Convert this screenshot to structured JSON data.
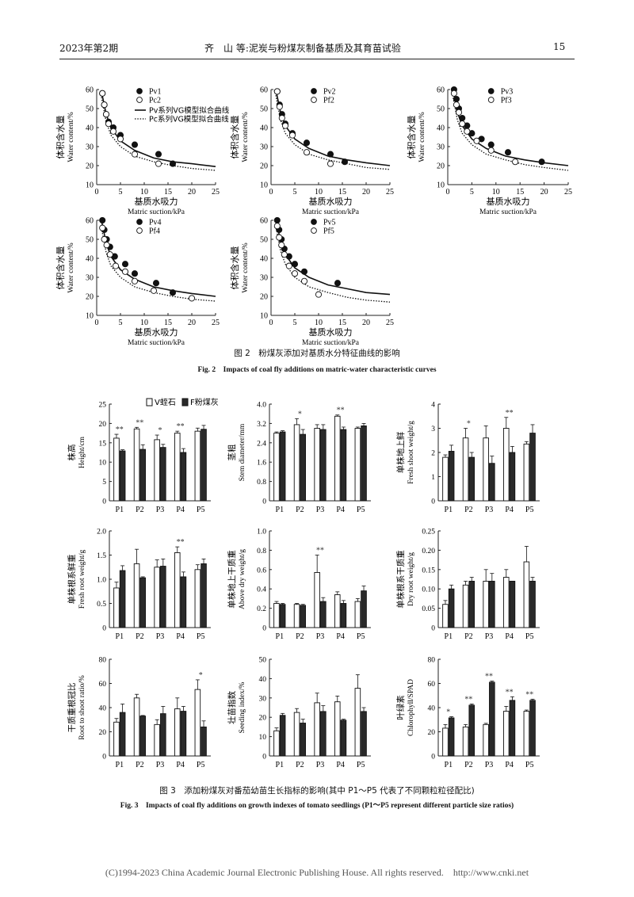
{
  "header": {
    "left": "2023年第2期",
    "center": "齐　山 等:泥炭与粉煤灰制备基质及其育苗试验",
    "page_number": "15"
  },
  "fig2": {
    "caption_cn": "图 2　粉煤灰添加对基质水分特征曲线的影响",
    "caption_en": "Fig. 2　Impacts of coal fly additions on matric-water characteristic curves",
    "x_label_cn": "基质水吸力",
    "x_label_en": "Matric suction/kPa",
    "y_label_cn": "体积含水量",
    "y_label_en": "Water content/%",
    "fit_line_labels": [
      "Pv系列VG模型拟合曲线",
      "Pc系列VG模型拟合曲线"
    ],
    "x_ticks": [
      "0",
      "5",
      "10",
      "15",
      "20",
      "25"
    ],
    "y_ticks": [
      "10",
      "20",
      "30",
      "40",
      "50",
      "60"
    ]
  },
  "fig3": {
    "caption_cn": "图 3　添加粉煤灰对番茄幼苗生长指标的影响(其中 P1～P5 代表了不同颗粒粒径配比)",
    "caption_en": "Fig. 3　Impacts of coal fly additions on growth indexes of tomato seedlings (P1～P5 represent different particle size ratios)",
    "legend": [
      "V蛭石",
      "F粉煤灰"
    ]
  },
  "footer": "(C)1994-2023 China Academic Journal Electronic Publishing House. All rights reserved.　http://www.cnki.net",
  "chart_data": [
    {
      "type": "scatter",
      "name": "fig2a",
      "legend": [
        "Pv1",
        "Pc2"
      ],
      "xlim": [
        0,
        25
      ],
      "ylim": [
        10,
        60
      ],
      "series": [
        {
          "name": "Pv1",
          "marker": "filled",
          "x": [
            1.2,
            1.6,
            2,
            2.5,
            3.5,
            5,
            8,
            13,
            16
          ],
          "y": [
            58,
            52,
            47,
            43,
            40,
            36,
            31,
            26,
            21
          ]
        },
        {
          "name": "Pc2",
          "marker": "open",
          "x": [
            1.2,
            1.6,
            2,
            2.5,
            3.5,
            5,
            8,
            13
          ],
          "y": [
            58,
            52,
            47,
            42,
            38,
            34,
            26,
            21
          ]
        }
      ],
      "fits": [
        {
          "style": "solid",
          "x": [
            1,
            2,
            3,
            5,
            8,
            12,
            16,
            20,
            25
          ],
          "y": [
            59,
            47,
            40,
            33,
            28,
            24,
            22,
            21,
            19.5
          ]
        },
        {
          "style": "dotted",
          "x": [
            1,
            2,
            3,
            5,
            8,
            12,
            16,
            20,
            25
          ],
          "y": [
            56,
            43,
            36,
            30,
            25,
            22,
            20,
            18.5,
            17.5
          ]
        }
      ]
    },
    {
      "type": "scatter",
      "name": "fig2b",
      "legend": [
        "Pv2",
        "Pf2"
      ],
      "xlim": [
        0,
        25
      ],
      "ylim": [
        10,
        60
      ],
      "series": [
        {
          "name": "Pv2",
          "marker": "filled",
          "x": [
            1.3,
            1.8,
            2.3,
            3,
            4.5,
            7.5,
            12.5,
            15.5
          ],
          "y": [
            59,
            52,
            47,
            42,
            37,
            32,
            26,
            22
          ]
        },
        {
          "name": "Pf2",
          "marker": "open",
          "x": [
            1.3,
            1.8,
            2.3,
            3,
            4.5,
            7.5,
            12.5
          ],
          "y": [
            59,
            51,
            45,
            41,
            36,
            27,
            21
          ]
        }
      ],
      "fits": [
        {
          "style": "solid",
          "x": [
            1,
            2,
            3,
            5,
            8,
            12,
            16,
            20,
            25
          ],
          "y": [
            60,
            48,
            41,
            34,
            29,
            25,
            23,
            21.5,
            20
          ]
        },
        {
          "style": "dotted",
          "x": [
            1,
            2,
            3,
            5,
            8,
            12,
            16,
            20,
            25
          ],
          "y": [
            57,
            44,
            37,
            31,
            26,
            23,
            21,
            19,
            18
          ]
        }
      ]
    },
    {
      "type": "scatter",
      "name": "fig2c",
      "legend": [
        "Pv3",
        "Pf3"
      ],
      "xlim": [
        0,
        25
      ],
      "ylim": [
        10,
        60
      ],
      "series": [
        {
          "name": "Pv3",
          "marker": "filled",
          "x": [
            1.3,
            1.8,
            2.3,
            3,
            4,
            5,
            7,
            9,
            12.5,
            19.5
          ],
          "y": [
            60,
            55,
            50,
            45,
            41,
            37,
            34,
            31,
            27,
            22
          ]
        },
        {
          "name": "Pf3",
          "marker": "open",
          "x": [
            1.3,
            1.8,
            2.3,
            3,
            4,
            6,
            9,
            14
          ],
          "y": [
            58,
            52,
            48,
            42,
            38,
            33,
            28,
            22
          ]
        }
      ],
      "fits": [
        {
          "style": "solid",
          "x": [
            1,
            2,
            3,
            5,
            8,
            12,
            16,
            20,
            25
          ],
          "y": [
            61,
            48,
            41,
            34,
            29,
            25,
            23,
            21.5,
            20
          ]
        },
        {
          "style": "dotted",
          "x": [
            1,
            2,
            3,
            5,
            8,
            12,
            16,
            20,
            25
          ],
          "y": [
            57,
            44,
            37,
            31,
            26,
            23,
            20.5,
            19,
            17.5
          ]
        }
      ]
    },
    {
      "type": "scatter",
      "name": "fig2d",
      "legend": [
        "Pv4",
        "Pf4"
      ],
      "xlim": [
        0,
        25
      ],
      "ylim": [
        10,
        60
      ],
      "series": [
        {
          "name": "Pv4",
          "marker": "filled",
          "x": [
            1.2,
            1.6,
            2.1,
            2.8,
            3.8,
            6,
            8,
            12.5,
            16
          ],
          "y": [
            60,
            55,
            50,
            46,
            41,
            37,
            32,
            27,
            22
          ]
        },
        {
          "name": "Pf4",
          "marker": "open",
          "x": [
            1.2,
            1.6,
            2.1,
            2.8,
            4,
            6,
            8,
            12,
            20
          ],
          "y": [
            56,
            50,
            47,
            42,
            36,
            33,
            28,
            23,
            19
          ]
        }
      ],
      "fits": [
        {
          "style": "solid",
          "x": [
            1,
            2,
            3,
            5,
            8,
            12,
            16,
            20,
            25
          ],
          "y": [
            60,
            48,
            41,
            34,
            29,
            25,
            23,
            21.5,
            20
          ]
        },
        {
          "style": "dotted",
          "x": [
            1,
            2,
            3,
            5,
            8,
            12,
            16,
            20,
            25
          ],
          "y": [
            56,
            43,
            36,
            30,
            25,
            22,
            20,
            18.5,
            17.5
          ]
        }
      ]
    },
    {
      "type": "scatter",
      "name": "fig2e",
      "legend": [
        "Pv5",
        "Pf5"
      ],
      "xlim": [
        0,
        25
      ],
      "ylim": [
        10,
        60
      ],
      "series": [
        {
          "name": "Pv5",
          "marker": "filled",
          "x": [
            1.3,
            1.7,
            2.2,
            2.8,
            3.8,
            5,
            7,
            14
          ],
          "y": [
            60,
            55,
            50,
            45,
            41,
            37,
            33,
            27
          ]
        },
        {
          "name": "Pf5",
          "marker": "open",
          "x": [
            1.3,
            1.7,
            2.2,
            2.8,
            3.8,
            5,
            7,
            10
          ],
          "y": [
            57,
            51,
            47,
            42,
            36,
            32,
            28,
            21
          ]
        }
      ],
      "fits": [
        {
          "style": "solid",
          "x": [
            1,
            2,
            3,
            5,
            8,
            12,
            16,
            20,
            25
          ],
          "y": [
            61,
            49,
            42,
            35,
            30,
            26,
            24,
            22,
            21
          ]
        },
        {
          "style": "dotted",
          "x": [
            1,
            2,
            3,
            5,
            8,
            12,
            16,
            20,
            25
          ],
          "y": [
            57,
            44,
            37,
            30,
            25,
            22,
            19.5,
            18,
            17
          ]
        }
      ]
    },
    {
      "type": "bar",
      "name": "height",
      "ylabel": [
        "株高",
        "Height/cm"
      ],
      "categories": [
        "P1",
        "P2",
        "P3",
        "P4",
        "P5"
      ],
      "ylim": [
        0,
        25
      ],
      "yticks": [
        "0",
        "5",
        "10",
        "15",
        "20",
        "25"
      ],
      "series": [
        {
          "name": "V",
          "values": [
            16.2,
            18.6,
            15.8,
            17.5,
            18
          ],
          "err": [
            1,
            0.4,
            1.2,
            0.5,
            0.8
          ]
        },
        {
          "name": "F",
          "values": [
            12.9,
            13.3,
            13.8,
            12.5,
            18.5
          ],
          "err": [
            0.3,
            1.2,
            0.8,
            1,
            1
          ]
        }
      ],
      "sig": [
        "**",
        "**",
        "*",
        "**",
        ""
      ]
    },
    {
      "type": "bar",
      "name": "stem",
      "ylabel": [
        "茎粗",
        "Stem diameter/mm"
      ],
      "categories": [
        "P1",
        "P2",
        "P3",
        "P4",
        "P5"
      ],
      "ylim": [
        0,
        4
      ],
      "yticks": [
        "0",
        "0.8",
        "1.6",
        "2.4",
        "3.2",
        "4.0"
      ],
      "series": [
        {
          "name": "V",
          "values": [
            2.8,
            3.15,
            3,
            3.5,
            3
          ],
          "err": [
            0.05,
            0.25,
            0.15,
            0.05,
            0.05
          ]
        },
        {
          "name": "F",
          "values": [
            2.85,
            2.75,
            2.95,
            2.95,
            3.1
          ],
          "err": [
            0.05,
            0.2,
            0.2,
            0.1,
            0.1
          ]
        }
      ],
      "sig": [
        "",
        "*",
        "",
        "**",
        ""
      ]
    },
    {
      "type": "bar",
      "name": "fresh_shoot",
      "ylabel": [
        "单株地上鲜",
        "Fresh shoot weight/g"
      ],
      "categories": [
        "P1",
        "P2",
        "P3",
        "P4",
        "P5"
      ],
      "ylim": [
        0,
        4
      ],
      "yticks": [
        "0",
        "1",
        "2",
        "3",
        "4"
      ],
      "series": [
        {
          "name": "V",
          "values": [
            1.8,
            2.6,
            2.6,
            3,
            2.35
          ],
          "err": [
            0.1,
            0.4,
            0.5,
            0.45,
            0.1
          ]
        },
        {
          "name": "F",
          "values": [
            2.05,
            1.8,
            1.55,
            2,
            2.8
          ],
          "err": [
            0.25,
            0.2,
            0.3,
            0.25,
            0.35
          ]
        }
      ],
      "sig": [
        "",
        "*",
        "",
        "**",
        ""
      ]
    },
    {
      "type": "bar",
      "name": "fresh_root",
      "ylabel": [
        "单株根系鲜重",
        "Fresh root weight/g"
      ],
      "categories": [
        "P1",
        "P2",
        "P3",
        "P4",
        "P5"
      ],
      "ylim": [
        0,
        2
      ],
      "yticks": [
        "0",
        "0.5",
        "1.0",
        "1.5",
        "2.0"
      ],
      "series": [
        {
          "name": "V",
          "values": [
            0.82,
            1.32,
            1.25,
            1.55,
            1.2
          ],
          "err": [
            0.12,
            0.3,
            0.15,
            0.12,
            0.1
          ]
        },
        {
          "name": "F",
          "values": [
            1.18,
            1.03,
            1.27,
            1.05,
            1.32
          ],
          "err": [
            0.1,
            0.02,
            0.15,
            0.1,
            0.1
          ]
        }
      ],
      "sig": [
        "",
        "",
        "",
        "**",
        ""
      ]
    },
    {
      "type": "bar",
      "name": "above_dry",
      "ylabel": [
        "单株地上干质重",
        "Above dry weight/g"
      ],
      "categories": [
        "P1",
        "P2",
        "P3",
        "P4",
        "P5"
      ],
      "ylim": [
        0,
        1
      ],
      "yticks": [
        "0",
        "0.2",
        "0.4",
        "0.6",
        "0.8",
        "1.0"
      ],
      "series": [
        {
          "name": "V",
          "values": [
            0.25,
            0.24,
            0.57,
            0.34,
            0.27
          ],
          "err": [
            0.02,
            0.01,
            0.18,
            0.03,
            0.03
          ]
        },
        {
          "name": "F",
          "values": [
            0.24,
            0.23,
            0.27,
            0.25,
            0.38
          ],
          "err": [
            0.01,
            0.01,
            0.04,
            0.03,
            0.05
          ]
        }
      ],
      "sig": [
        "",
        "",
        "**",
        "",
        ""
      ]
    },
    {
      "type": "bar",
      "name": "dry_root",
      "ylabel": [
        "单株根系干质重",
        "Dry root weight/g"
      ],
      "categories": [
        "P1",
        "P2",
        "P3",
        "P4",
        "P5"
      ],
      "ylim": [
        0,
        0.25
      ],
      "yticks": [
        "0",
        "0.05",
        "0.10",
        "0.15",
        "0.20",
        "0.25"
      ],
      "series": [
        {
          "name": "V",
          "values": [
            0.06,
            0.11,
            0.12,
            0.13,
            0.17
          ],
          "err": [
            0.01,
            0.01,
            0.03,
            0.02,
            0.04
          ]
        },
        {
          "name": "F",
          "values": [
            0.1,
            0.12,
            0.12,
            0.12,
            0.12
          ],
          "err": [
            0.01,
            0.01,
            0.02,
            0.0,
            0.01
          ]
        }
      ],
      "sig": [
        "",
        "",
        "",
        "",
        ""
      ]
    },
    {
      "type": "bar",
      "name": "root_shoot",
      "ylabel": [
        "干质重根冠比",
        "Root to shoot ratio/%"
      ],
      "categories": [
        "P1",
        "P2",
        "P3",
        "P4",
        "P5"
      ],
      "ylim": [
        0,
        80
      ],
      "yticks": [
        "0",
        "20",
        "40",
        "60",
        "80"
      ],
      "series": [
        {
          "name": "V",
          "values": [
            28,
            48,
            26,
            39,
            55
          ],
          "err": [
            3,
            3,
            4,
            9,
            8
          ]
        },
        {
          "name": "F",
          "values": [
            36,
            33,
            35,
            37,
            24
          ],
          "err": [
            7,
            0.5,
            6,
            4,
            5
          ]
        }
      ],
      "sig": [
        "",
        "",
        "",
        "",
        "*"
      ]
    },
    {
      "type": "bar",
      "name": "seeding_index",
      "ylabel": [
        "壮苗指数",
        "Seeding index/%"
      ],
      "categories": [
        "P1",
        "P2",
        "P3",
        "P4",
        "P5"
      ],
      "ylim": [
        0,
        50
      ],
      "yticks": [
        "0",
        "10",
        "20",
        "30",
        "40",
        "50"
      ],
      "series": [
        {
          "name": "V",
          "values": [
            13,
            22.5,
            27.5,
            28,
            35
          ],
          "err": [
            1.5,
            2,
            5,
            3,
            7
          ]
        },
        {
          "name": "F",
          "values": [
            21,
            17,
            23,
            18.5,
            23
          ],
          "err": [
            1,
            2,
            3,
            0.5,
            2
          ]
        }
      ],
      "sig": [
        "",
        "",
        "",
        "",
        ""
      ]
    },
    {
      "type": "bar",
      "name": "chlorophyll",
      "ylabel": [
        "叶绿素",
        "Chlorophyll/SPAD"
      ],
      "categories": [
        "P1",
        "P2",
        "P3",
        "P4",
        "P5"
      ],
      "ylim": [
        0,
        80
      ],
      "yticks": [
        "0",
        "20",
        "40",
        "60",
        "80"
      ],
      "series": [
        {
          "name": "V",
          "values": [
            23,
            24,
            26,
            37,
            37
          ],
          "err": [
            3,
            2,
            1,
            4,
            1
          ]
        },
        {
          "name": "F",
          "values": [
            31.5,
            42,
            61,
            46,
            46
          ],
          "err": [
            1,
            1,
            1,
            3,
            1
          ]
        }
      ],
      "sig": [
        "*",
        "**",
        "**",
        "**",
        "**"
      ]
    }
  ]
}
